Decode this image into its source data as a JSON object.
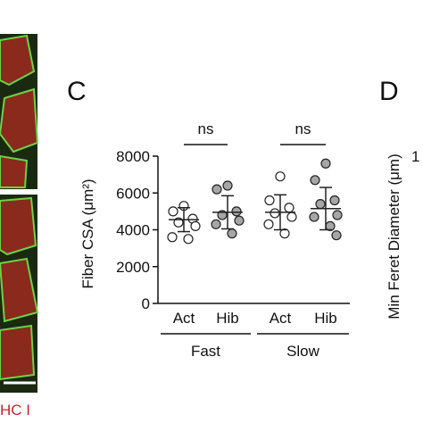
{
  "chart_data": {
    "type": "dot",
    "panel": "C",
    "y_label": "Fiber CSA (μm²)",
    "categories": [
      "Act",
      "Hib",
      "Act",
      "Hib"
    ],
    "groups": [
      "Fast",
      "Slow"
    ],
    "colors": [
      "#ffffff",
      "#a6a6a6",
      "#ffffff",
      "#a6a6a6"
    ],
    "points": [
      [
        5300,
        5000,
        4600,
        4400,
        4200,
        3600,
        3500
      ],
      [
        6400,
        6200,
        5000,
        4800,
        4500,
        4300,
        3800
      ],
      [
        6900,
        5600,
        5200,
        4900,
        4700,
        4300,
        3800
      ],
      [
        7600,
        6700,
        5600,
        5400,
        4800,
        4700,
        4200,
        3700
      ]
    ],
    "means": [
      4550,
      4950,
      4950,
      5150
    ],
    "sd": [
      650,
      900,
      950,
      1150
    ],
    "significance": [
      "ns",
      "ns"
    ],
    "ylim": [
      0,
      8000
    ],
    "yticks": [
      0,
      2000,
      4000,
      6000,
      8000
    ]
  },
  "panel_d": {
    "label": "D",
    "y_label": "Min Feret Diameter (μm)",
    "tick": "1"
  },
  "image_caption": "HC I"
}
